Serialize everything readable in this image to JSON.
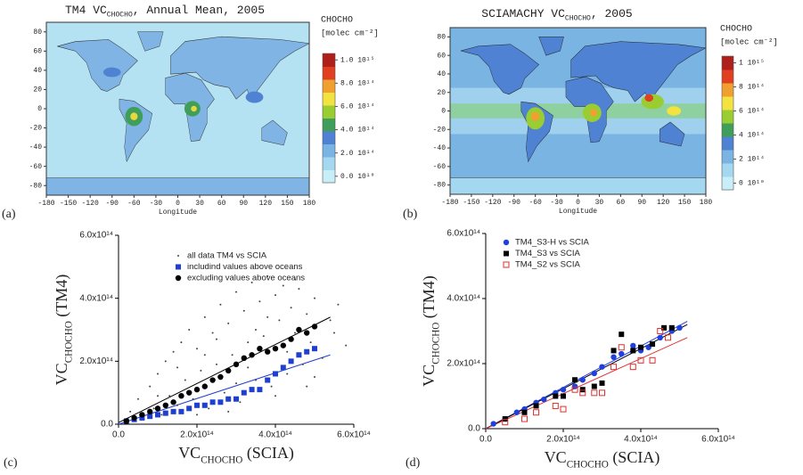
{
  "chart_data": [
    {
      "type": "map",
      "panel_label": "(a)",
      "title": [
        "TM4 VC",
        "CHOCHO",
        ", Annual Mean, 2005"
      ],
      "xlabel": "Longitude",
      "xlim": [
        -180,
        180
      ],
      "xticks": [
        -180,
        -150,
        -120,
        -90,
        -60,
        -30,
        0,
        30,
        60,
        90,
        120,
        150,
        180
      ],
      "ylim": [
        -90,
        90
      ],
      "yticks": [
        80,
        60,
        40,
        20,
        0,
        -20,
        -40,
        -60,
        -80
      ],
      "colorbar": {
        "title": "CHOCHO",
        "unit": "[molec cm⁻²]",
        "lim": [
          0,
          1000000000000000.0
        ],
        "ticks": [
          {
            "value": 0,
            "label": "0.0 10¹⁰"
          },
          {
            "value": 200000000000000.0,
            "label": "2.0 10¹⁴"
          },
          {
            "value": 400000000000000.0,
            "label": "4.0 10¹⁴"
          },
          {
            "value": 600000000000000.0,
            "label": "6.0 10¹⁴"
          },
          {
            "value": 800000000000000.0,
            "label": "8.0 10¹⁴"
          },
          {
            "value": 1000000000000000.0,
            "label": "1.0 10¹⁵"
          }
        ],
        "colors": [
          "#c8eef8",
          "#a4d8f0",
          "#7ab4e2",
          "#4f82d2",
          "#3f9f5a",
          "#9acd32",
          "#f2e340",
          "#f0a030",
          "#e04020",
          "#b0201a"
        ]
      }
    },
    {
      "type": "map",
      "panel_label": "(b)",
      "title": [
        "SCIAMACHY VC",
        "CHOCHO",
        ", 2005"
      ],
      "xlabel": "Longitude",
      "xlim": [
        -180,
        180
      ],
      "xticks": [
        -180,
        -150,
        -120,
        -90,
        -60,
        -30,
        0,
        30,
        60,
        90,
        120,
        150,
        180
      ],
      "ylim": [
        -90,
        90
      ],
      "yticks": [
        80,
        60,
        40,
        20,
        0,
        -20,
        -40,
        -60,
        -80
      ],
      "colorbar": {
        "title": "CHOCHO",
        "unit": "[molec cm⁻²]",
        "lim": [
          0,
          1000000000000000.0
        ],
        "ticks": [
          {
            "value": 0,
            "label": "0 10¹⁰"
          },
          {
            "value": 200000000000000.0,
            "label": "2 10¹⁴"
          },
          {
            "value": 400000000000000.0,
            "label": "4 10¹⁴"
          },
          {
            "value": 600000000000000.0,
            "label": "6 10¹⁴"
          },
          {
            "value": 800000000000000.0,
            "label": "8 10¹⁴"
          },
          {
            "value": 1000000000000000.0,
            "label": "1 10¹⁵"
          }
        ],
        "colors": [
          "#c8eef8",
          "#a4d8f0",
          "#7ab4e2",
          "#4f82d2",
          "#3f9f5a",
          "#9acd32",
          "#f2e340",
          "#f0a030",
          "#e04020",
          "#b0201a"
        ]
      }
    },
    {
      "type": "scatter",
      "panel_label": "(c)",
      "xlabel": [
        "VC",
        "CHOCHO",
        " (SCIA)"
      ],
      "ylabel": [
        "VC",
        "CHOCHO",
        " (TM4)"
      ],
      "xlim": [
        0,
        600000000000000.0
      ],
      "ylim": [
        0,
        600000000000000.0
      ],
      "xticks": [
        {
          "value": 0,
          "label": "0.0"
        },
        {
          "value": 200000000000000.0,
          "label": "2.0x10¹⁴"
        },
        {
          "value": 400000000000000.0,
          "label": "4.0x10¹⁴"
        },
        {
          "value": 600000000000000.0,
          "label": "6.0x10¹⁴"
        }
      ],
      "yticks": [
        {
          "value": 0,
          "label": "0.0"
        },
        {
          "value": 200000000000000.0,
          "label": "2.0x10¹⁴"
        },
        {
          "value": 400000000000000.0,
          "label": "4.0x10¹⁴"
        },
        {
          "value": 600000000000000.0,
          "label": "6.0x10¹⁴"
        }
      ],
      "series": [
        {
          "name": "all data TM4 vs SCIA",
          "color": "#444444",
          "marker": "dot",
          "x": [
            30000000000000.0,
            50000000000000.0,
            60000000000000.0,
            80000000000000.0,
            90000000000000.0,
            100000000000000.0,
            110000000000000.0,
            120000000000000.0,
            130000000000000.0,
            140000000000000.0,
            150000000000000.0,
            160000000000000.0,
            170000000000000.0,
            180000000000000.0,
            190000000000000.0,
            200000000000000.0,
            210000000000000.0,
            220000000000000.0,
            230000000000000.0,
            240000000000000.0,
            250000000000000.0,
            260000000000000.0,
            270000000000000.0,
            280000000000000.0,
            290000000000000.0,
            300000000000000.0,
            310000000000000.0,
            320000000000000.0,
            330000000000000.0,
            340000000000000.0,
            350000000000000.0,
            360000000000000.0,
            370000000000000.0,
            380000000000000.0,
            390000000000000.0,
            400000000000000.0,
            410000000000000.0,
            420000000000000.0,
            430000000000000.0,
            440000000000000.0,
            450000000000000.0,
            460000000000000.0,
            470000000000000.0,
            480000000000000.0,
            490000000000000.0,
            500000000000000.0,
            520000000000000.0,
            540000000000000.0,
            560000000000000.0,
            580000000000000.0,
            100000000000000.0,
            150000000000000.0,
            200000000000000.0,
            250000000000000.0,
            300000000000000.0,
            350000000000000.0,
            400000000000000.0,
            450000000000000.0,
            500000000000000.0,
            550000000000000.0,
            220000000000000.0,
            280000000000000.0,
            330000000000000.0,
            380000000000000.0,
            430000000000000.0,
            480000000000000.0
          ],
          "y": [
            40000000000000.0,
            80000000000000.0,
            20000000000000.0,
            120000000000000.0,
            50000000000000.0,
            160000000000000.0,
            30000000000000.0,
            200000000000000.0,
            90000000000000.0,
            230000000000000.0,
            60000000000000.0,
            260000000000000.0,
            140000000000000.0,
            300000000000000.0,
            80000000000000.0,
            240000000000000.0,
            170000000000000.0,
            340000000000000.0,
            50000000000000.0,
            290000000000000.0,
            190000000000000.0,
            380000000000000.0,
            100000000000000.0,
            320000000000000.0,
            220000000000000.0,
            420000000000000.0,
            70000000000000.0,
            360000000000000.0,
            260000000000000.0,
            450000000000000.0,
            140000000000000.0,
            390000000000000.0,
            280000000000000.0,
            470000000000000.0,
            120000000000000.0,
            410000000000000.0,
            330000000000000.0,
            440000000000000.0,
            160000000000000.0,
            370000000000000.0,
            290000000000000.0,
            430000000000000.0,
            190000000000000.0,
            350000000000000.0,
            260000000000000.0,
            400000000000000.0,
            210000000000000.0,
            330000000000000.0,
            380000000000000.0,
            250000000000000.0,
            90000000000000.0,
            180000000000000.0,
            30000000000000.0,
            270000000000000.0,
            130000000000000.0,
            300000000000000.0,
            90000000000000.0,
            460000000000000.0,
            150000000000000.0,
            290000000000000.0,
            220000000000000.0,
            40000000000000.0,
            180000000000000.0,
            340000000000000.0,
            230000000000000.0,
            120000000000000.0
          ]
        },
        {
          "name": "includind values above oceans",
          "color": "#1f3fcf",
          "marker": "square",
          "x": [
            20000000000000.0,
            40000000000000.0,
            60000000000000.0,
            80000000000000.0,
            100000000000000.0,
            120000000000000.0,
            140000000000000.0,
            160000000000000.0,
            180000000000000.0,
            200000000000000.0,
            220000000000000.0,
            240000000000000.0,
            260000000000000.0,
            280000000000000.0,
            300000000000000.0,
            320000000000000.0,
            340000000000000.0,
            360000000000000.0,
            380000000000000.0,
            400000000000000.0,
            420000000000000.0,
            440000000000000.0,
            460000000000000.0,
            480000000000000.0,
            500000000000000.0
          ],
          "y": [
            10000000000000.0,
            15000000000000.0,
            20000000000000.0,
            25000000000000.0,
            30000000000000.0,
            35000000000000.0,
            40000000000000.0,
            40000000000000.0,
            50000000000000.0,
            60000000000000.0,
            60000000000000.0,
            70000000000000.0,
            70000000000000.0,
            80000000000000.0,
            80000000000000.0,
            100000000000000.0,
            110000000000000.0,
            110000000000000.0,
            140000000000000.0,
            160000000000000.0,
            180000000000000.0,
            200000000000000.0,
            220000000000000.0,
            230000000000000.0,
            240000000000000.0
          ]
        },
        {
          "name": "excluding values above oceans",
          "color": "#000000",
          "marker": "circle",
          "x": [
            20000000000000.0,
            40000000000000.0,
            60000000000000.0,
            80000000000000.0,
            100000000000000.0,
            120000000000000.0,
            140000000000000.0,
            160000000000000.0,
            180000000000000.0,
            200000000000000.0,
            220000000000000.0,
            240000000000000.0,
            260000000000000.0,
            280000000000000.0,
            300000000000000.0,
            320000000000000.0,
            340000000000000.0,
            360000000000000.0,
            380000000000000.0,
            400000000000000.0,
            420000000000000.0,
            440000000000000.0,
            460000000000000.0,
            480000000000000.0,
            500000000000000.0
          ],
          "y": [
            10000000000000.0,
            20000000000000.0,
            30000000000000.0,
            40000000000000.0,
            50000000000000.0,
            60000000000000.0,
            70000000000000.0,
            90000000000000.0,
            100000000000000.0,
            110000000000000.0,
            120000000000000.0,
            140000000000000.0,
            150000000000000.0,
            170000000000000.0,
            190000000000000.0,
            210000000000000.0,
            220000000000000.0,
            240000000000000.0,
            230000000000000.0,
            240000000000000.0,
            250000000000000.0,
            270000000000000.0,
            300000000000000.0,
            290000000000000.0,
            310000000000000.0
          ]
        }
      ],
      "fits": [
        {
          "color": "#000000",
          "x": [
            0,
            540000000000000.0
          ],
          "y": [
            5000000000000.0,
            340000000000000.0
          ]
        },
        {
          "color": "#1f3fcf",
          "x": [
            0,
            540000000000000.0
          ],
          "y": [
            0,
            220000000000000.0
          ]
        }
      ]
    },
    {
      "type": "scatter",
      "panel_label": "(d)",
      "xlabel": [
        "VC",
        "CHOCHO",
        " (SCIA)"
      ],
      "ylabel": [
        "VC",
        "CHOCHO",
        " (TM4)"
      ],
      "xlim": [
        0,
        600000000000000.0
      ],
      "ylim": [
        0,
        600000000000000.0
      ],
      "xticks": [
        {
          "value": 0,
          "label": "0.0"
        },
        {
          "value": 200000000000000.0,
          "label": "2.0x10¹⁴"
        },
        {
          "value": 400000000000000.0,
          "label": "4.0x10¹⁴"
        },
        {
          "value": 600000000000000.0,
          "label": "6.0x10¹⁴"
        }
      ],
      "yticks": [
        {
          "value": 0,
          "label": "0.0"
        },
        {
          "value": 200000000000000.0,
          "label": "2.0x10¹⁴"
        },
        {
          "value": 400000000000000.0,
          "label": "4.0x10¹⁴"
        },
        {
          "value": 600000000000000.0,
          "label": "6.0x10¹⁴"
        }
      ],
      "series": [
        {
          "name": "TM4_S3-H vs SCIA",
          "color": "#1f3fdf",
          "marker": "circle",
          "x": [
            20000000000000.0,
            50000000000000.0,
            80000000000000.0,
            100000000000000.0,
            130000000000000.0,
            150000000000000.0,
            180000000000000.0,
            200000000000000.0,
            230000000000000.0,
            250000000000000.0,
            280000000000000.0,
            300000000000000.0,
            330000000000000.0,
            350000000000000.0,
            380000000000000.0,
            400000000000000.0,
            420000000000000.0,
            450000000000000.0,
            480000000000000.0,
            500000000000000.0
          ],
          "y": [
            15000000000000.0,
            30000000000000.0,
            50000000000000.0,
            60000000000000.0,
            80000000000000.0,
            90000000000000.0,
            110000000000000.0,
            120000000000000.0,
            130000000000000.0,
            150000000000000.0,
            170000000000000.0,
            190000000000000.0,
            220000000000000.0,
            230000000000000.0,
            255000000000000.0,
            240000000000000.0,
            250000000000000.0,
            280000000000000.0,
            300000000000000.0,
            310000000000000.0
          ]
        },
        {
          "name": "TM4_S3 vs SCIA",
          "color": "#000000",
          "marker": "square",
          "x": [
            50000000000000.0,
            100000000000000.0,
            130000000000000.0,
            180000000000000.0,
            200000000000000.0,
            230000000000000.0,
            250000000000000.0,
            280000000000000.0,
            300000000000000.0,
            330000000000000.0,
            350000000000000.0,
            380000000000000.0,
            400000000000000.0,
            430000000000000.0,
            460000000000000.0,
            480000000000000.0
          ],
          "y": [
            30000000000000.0,
            50000000000000.0,
            70000000000000.0,
            100000000000000.0,
            100000000000000.0,
            150000000000000.0,
            120000000000000.0,
            130000000000000.0,
            140000000000000.0,
            240000000000000.0,
            290000000000000.0,
            240000000000000.0,
            250000000000000.0,
            260000000000000.0,
            310000000000000.0,
            310000000000000.0
          ]
        },
        {
          "name": "TM4_S2 vs SCIA",
          "color": "#e03030",
          "marker": "open-square",
          "x": [
            50000000000000.0,
            100000000000000.0,
            130000000000000.0,
            180000000000000.0,
            200000000000000.0,
            230000000000000.0,
            250000000000000.0,
            280000000000000.0,
            300000000000000.0,
            330000000000000.0,
            350000000000000.0,
            380000000000000.0,
            400000000000000.0,
            430000000000000.0,
            450000000000000.0,
            470000000000000.0
          ],
          "y": [
            20000000000000.0,
            30000000000000.0,
            50000000000000.0,
            70000000000000.0,
            60000000000000.0,
            120000000000000.0,
            110000000000000.0,
            110000000000000.0,
            110000000000000.0,
            190000000000000.0,
            250000000000000.0,
            190000000000000.0,
            210000000000000.0,
            210000000000000.0,
            300000000000000.0,
            280000000000000.0
          ]
        }
      ],
      "fits": [
        {
          "color": "#1f3fdf",
          "x": [
            0,
            520000000000000.0
          ],
          "y": [
            0,
            330000000000000.0
          ]
        },
        {
          "color": "#000000",
          "x": [
            0,
            520000000000000.0
          ],
          "y": [
            0,
            320000000000000.0
          ]
        },
        {
          "color": "#e03030",
          "x": [
            0,
            520000000000000.0
          ],
          "y": [
            0,
            280000000000000.0
          ]
        }
      ]
    }
  ]
}
